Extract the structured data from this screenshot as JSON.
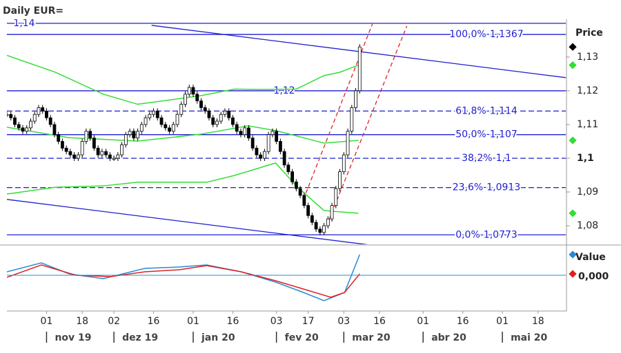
{
  "chart_data": {
    "type": "candlestick",
    "title": "Daily EUR=",
    "y_axis_label": "Price",
    "xlim": [
      0,
      141
    ],
    "ylim": [
      1.0745,
      1.1412
    ],
    "yticks": [
      {
        "value": 1.08,
        "label": "1,08"
      },
      {
        "value": 1.09,
        "label": "1,09"
      },
      {
        "value": 1.1,
        "label": "1,1",
        "bold": true
      },
      {
        "value": 1.11,
        "label": "1,11"
      },
      {
        "value": 1.12,
        "label": "1,12"
      },
      {
        "value": 1.13,
        "label": "1,13"
      }
    ],
    "xticks": [
      {
        "value": 10,
        "label": "01"
      },
      {
        "value": 19,
        "label": "18"
      },
      {
        "value": 27,
        "label": "02"
      },
      {
        "value": 37,
        "label": "16"
      },
      {
        "value": 47,
        "label": "01"
      },
      {
        "value": 57,
        "label": "16"
      },
      {
        "value": 68,
        "label": "03"
      },
      {
        "value": 76,
        "label": "17"
      },
      {
        "value": 85,
        "label": "03"
      },
      {
        "value": 94,
        "label": "16"
      },
      {
        "value": 105,
        "label": "01"
      },
      {
        "value": 115,
        "label": "16"
      },
      {
        "value": 125,
        "label": "01"
      },
      {
        "value": 134,
        "label": "18"
      }
    ],
    "months": [
      {
        "value": 10,
        "label": "nov 19"
      },
      {
        "value": 27,
        "label": "dez 19"
      },
      {
        "value": 47,
        "label": "jan 20"
      },
      {
        "value": 68,
        "label": "fev 20"
      },
      {
        "value": 85,
        "label": "mar 20"
      },
      {
        "value": 105,
        "label": "abr 20"
      },
      {
        "value": 125,
        "label": "mai 20"
      }
    ],
    "closes": [
      1.113,
      1.112,
      1.11,
      1.109,
      1.108,
      1.109,
      1.111,
      1.113,
      1.115,
      1.114,
      1.112,
      1.11,
      1.107,
      1.105,
      1.103,
      1.102,
      1.101,
      1.1,
      1.101,
      1.105,
      1.108,
      1.106,
      1.103,
      1.101,
      1.102,
      1.101,
      1.1,
      1.1,
      1.101,
      1.104,
      1.107,
      1.108,
      1.106,
      1.108,
      1.11,
      1.112,
      1.113,
      1.114,
      1.112,
      1.11,
      1.109,
      1.108,
      1.11,
      1.113,
      1.116,
      1.119,
      1.121,
      1.119,
      1.117,
      1.115,
      1.114,
      1.112,
      1.11,
      1.111,
      1.113,
      1.114,
      1.112,
      1.11,
      1.108,
      1.107,
      1.109,
      1.106,
      1.103,
      1.101,
      1.1,
      1.102,
      1.107,
      1.108,
      1.105,
      1.102,
      1.098,
      1.096,
      1.093,
      1.091,
      1.089,
      1.086,
      1.083,
      1.081,
      1.079,
      1.078,
      1.08,
      1.082,
      1.086,
      1.091,
      1.096,
      1.101,
      1.108,
      1.115,
      1.12,
      1.133
    ],
    "levels": [
      {
        "value": 1.1367,
        "label": "100,0%-1,1367",
        "dashed": false
      },
      {
        "value": 1.14,
        "label": "1,14",
        "dashed": false
      },
      {
        "value": 1.12,
        "label": "1,12",
        "dashed": false
      },
      {
        "value": 1.114,
        "label": "61,8%-1,114",
        "dashed": true
      },
      {
        "value": 1.107,
        "label": "50,0%-1,107",
        "dashed": false
      },
      {
        "value": 1.1,
        "label": "38,2%-1,1",
        "dashed": true
      },
      {
        "value": 1.0913,
        "label": "23,6%-1,0913",
        "dashed": true
      },
      {
        "value": 1.0773,
        "label": "0,0%-1,0773",
        "dashed": false
      }
    ],
    "bands": [
      {
        "color": "#33dd33",
        "x": [
          0,
          12.2,
          24.3,
          33,
          48.7,
          57.4,
          64.3,
          73,
          80,
          84,
          88.7
        ],
        "values": [
          1.1305,
          1.1255,
          1.119,
          1.116,
          1.1185,
          1.1205,
          1.1204,
          1.1205,
          1.1245,
          1.1255,
          1.1276
        ]
      },
      {
        "color": "#33dd33",
        "x": [
          0,
          15.7,
          33,
          48.7,
          60.9,
          67.8,
          80,
          88.7
        ],
        "values": [
          1.1092,
          1.1061,
          1.1051,
          1.1071,
          1.1096,
          1.1082,
          1.1045,
          1.1053
        ]
      },
      {
        "color": "#33dd33",
        "x": [
          0,
          12.2,
          24.3,
          33,
          50.4,
          57.4,
          67.8,
          73,
          80,
          88.7
        ],
        "values": [
          1.0894,
          1.0914,
          1.0918,
          1.0929,
          1.0929,
          1.0949,
          1.0986,
          1.0918,
          1.0845,
          1.0837
        ]
      }
    ],
    "trendlines": [
      {
        "color": "#1c1cd0",
        "dashed": false,
        "x": [
          36.5,
          141
        ],
        "y": [
          1.1394,
          1.1239
        ]
      },
      {
        "color": "#1c1cd0",
        "dashed": false,
        "x": [
          0,
          93.6
        ],
        "y": [
          1.0878,
          1.074
        ]
      },
      {
        "color": "#e02020",
        "dashed": true,
        "x": [
          74.8,
          92.2
        ],
        "y": [
          1.0878,
          1.1398
        ]
      },
      {
        "color": "#e02020",
        "dashed": true,
        "x": [
          80,
          100.9
        ],
        "y": [
          1.078,
          1.1392
        ]
      }
    ],
    "oscillator": {
      "y_axis_label": "Value",
      "ylim": [
        -5.2,
        3.8
      ],
      "yticks": [
        {
          "value": 0,
          "label": "0,000"
        }
      ],
      "series": [
        {
          "color": "#2a8ad0",
          "x": [
            0,
            8.7,
            15.7,
            24.3,
            34.8,
            43.5,
            50.4,
            59.1,
            67.8,
            74.8,
            80,
            85.2,
            89
          ],
          "values": [
            0.5,
            1.8,
            0.2,
            -0.5,
            1,
            1.2,
            1.5,
            0.5,
            -1,
            -2.5,
            -3.7,
            -2.5,
            3
          ]
        },
        {
          "color": "#e02020",
          "x": [
            0,
            8.7,
            17.4,
            26.1,
            34.8,
            43.5,
            50.4,
            59.1,
            67.8,
            74.8,
            81.7,
            85.2,
            89
          ],
          "values": [
            -0.3,
            1.5,
            0,
            -0.2,
            0.5,
            0.8,
            1.4,
            0.5,
            -0.8,
            -2,
            -3.2,
            -2.5,
            0.2
          ]
        }
      ]
    }
  }
}
